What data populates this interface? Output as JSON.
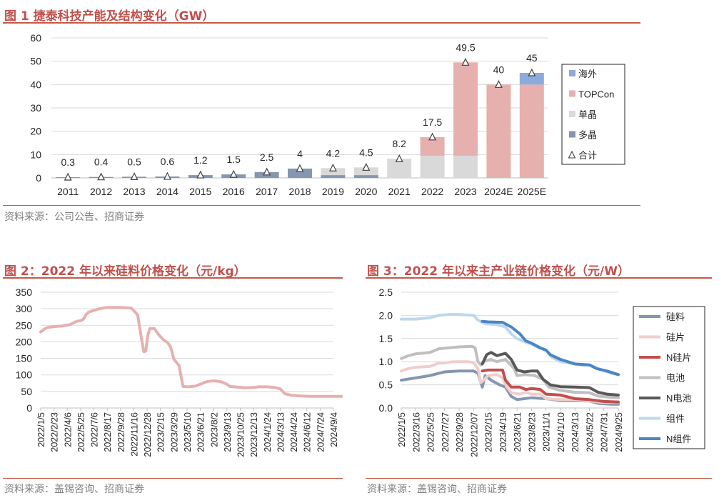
{
  "fig1": {
    "title": "图 1 捷泰科技产能及结构变化（GW）",
    "source": "资料来源：公司公告、招商证券",
    "chart_data": {
      "type": "bar",
      "stacked": true,
      "categories": [
        "2011",
        "2012",
        "2013",
        "2014",
        "2015",
        "2016",
        "2017",
        "2018",
        "2019",
        "2020",
        "2021",
        "2022",
        "2023",
        "2024E",
        "2025E"
      ],
      "series": [
        {
          "name": "多晶",
          "color": "#8496b0",
          "values": [
            0.3,
            0.4,
            0.5,
            0.6,
            1.2,
            1.5,
            2.5,
            4,
            1.2,
            1.2,
            0,
            0,
            0,
            0,
            0
          ]
        },
        {
          "name": "单晶",
          "color": "#d9d9d9",
          "values": [
            0,
            0,
            0,
            0,
            0,
            0,
            0,
            0,
            3,
            3.3,
            8.2,
            9.5,
            9.5,
            0,
            0
          ]
        },
        {
          "name": "TOPCon",
          "color": "#e6b0ae",
          "values": [
            0,
            0,
            0,
            0,
            0,
            0,
            0,
            0,
            0,
            0,
            0,
            8,
            40,
            40,
            40
          ]
        },
        {
          "name": "海外",
          "color": "#8eaadb",
          "values": [
            0,
            0,
            0,
            0,
            0,
            0,
            0,
            0,
            0,
            0,
            0,
            0,
            0,
            0,
            5
          ]
        }
      ],
      "totals_name": "合计",
      "totals": [
        0.3,
        0.4,
        0.5,
        0.6,
        1.2,
        1.5,
        2.5,
        4,
        4.2,
        4.5,
        8.2,
        17.5,
        49.5,
        40,
        45
      ],
      "total_labels": [
        "0.3",
        "0.4",
        "0.5",
        "0.6",
        "1.2",
        "1.5",
        "2.5",
        "4",
        "4.2",
        "4.5",
        "8.2",
        "17.5",
        "49.5",
        "40",
        "45"
      ],
      "ylim": [
        0,
        60
      ],
      "yticks": [
        "0",
        "10",
        "20",
        "30",
        "40",
        "50",
        "60"
      ],
      "legend_position": "right",
      "grid": true
    }
  },
  "fig2": {
    "title": "图 2：2022 年以来硅料价格变化（元/kg）",
    "source": "资料来源：盖锡咨询、招商证券",
    "chart_data": {
      "type": "line",
      "ylim": [
        0,
        350
      ],
      "yticks": [
        "0",
        "50",
        "100",
        "150",
        "200",
        "250",
        "300",
        "350"
      ],
      "xticks": [
        "2022/1/5",
        "2022/2/23",
        "2022/4/6",
        "2022/5/25",
        "2022/7/6",
        "2022/8/17",
        "2022/9/28",
        "2022/11/16",
        "2022/12/28",
        "2023/2/15",
        "2023/3/29",
        "2023/5/10",
        "2023/6/21",
        "2023/8/2",
        "2023/9/13",
        "2023/10/25",
        "2023/12/13",
        "2024/1/24",
        "2024/3/13",
        "2024/4/24",
        "2024/6/12",
        "2024/7/24",
        "2024/9/4"
      ],
      "series": [
        {
          "name": "",
          "color": "#e6b0ae",
          "points": [
            [
              0,
              230
            ],
            [
              0.25,
              238
            ],
            [
              0.5,
              243
            ],
            [
              1,
              246
            ],
            [
              1.6,
              248
            ],
            [
              2.2,
              252
            ],
            [
              2.7,
              262
            ],
            [
              3,
              264
            ],
            [
              3.2,
              268
            ],
            [
              3.4,
              282
            ],
            [
              3.6,
              290
            ],
            [
              4,
              295
            ],
            [
              4.4,
              300
            ],
            [
              5,
              304
            ],
            [
              6,
              304
            ],
            [
              6.8,
              302
            ],
            [
              7.1,
              290
            ],
            [
              7.3,
              280
            ],
            [
              7.45,
              240
            ],
            [
              7.6,
              205
            ],
            [
              7.75,
              170
            ],
            [
              7.9,
              172
            ],
            [
              8.05,
              220
            ],
            [
              8.2,
              240
            ],
            [
              8.55,
              240
            ],
            [
              8.8,
              225
            ],
            [
              9.2,
              207
            ],
            [
              9.55,
              197
            ],
            [
              9.75,
              185
            ],
            [
              9.85,
              172
            ],
            [
              10,
              148
            ],
            [
              10.4,
              128
            ],
            [
              10.55,
              95
            ],
            [
              10.7,
              65
            ],
            [
              11.1,
              64
            ],
            [
              11.6,
              66
            ],
            [
              12,
              72
            ],
            [
              12.5,
              80
            ],
            [
              13,
              82
            ],
            [
              13.5,
              80
            ],
            [
              14,
              72
            ],
            [
              14.2,
              65
            ],
            [
              14.8,
              63
            ],
            [
              15.4,
              61
            ],
            [
              16,
              62
            ],
            [
              16.4,
              64
            ],
            [
              17,
              64
            ],
            [
              17.6,
              62
            ],
            [
              18,
              58
            ],
            [
              18.35,
              43
            ],
            [
              18.9,
              38
            ],
            [
              19.6,
              36
            ],
            [
              20.3,
              35
            ],
            [
              21.3,
              35
            ],
            [
              22.3,
              35
            ],
            [
              22.6,
              35
            ]
          ]
        }
      ],
      "grid": true
    }
  },
  "fig3": {
    "title": "图 3：2022 年以来主产业链价格变化（元/W）",
    "source": "资料来源：盖锡咨询、招商证券",
    "chart_data": {
      "type": "line",
      "ylim": [
        0,
        2.5
      ],
      "yticks": [
        "0.0",
        "0.5",
        "1.0",
        "1.5",
        "2.0",
        "2.5"
      ],
      "xticks": [
        "2022/1/5",
        "2022/3/16",
        "2022/5/25",
        "2022/7/27",
        "2022/9/28",
        "2022/12/07",
        "2023/2/15",
        "2023/4/19",
        "2023/6/21",
        "2023/8/23",
        "2023/11/1",
        "2024/1/10",
        "2024/3/13",
        "2024/5/22",
        "2024/7/31",
        "2024/9/25"
      ],
      "legend_position": "right",
      "series": [
        {
          "name": "硅料",
          "color": "#8496b0",
          "points": [
            [
              0,
              0.6
            ],
            [
              1,
              0.65
            ],
            [
              2,
              0.7
            ],
            [
              2.6,
              0.75
            ],
            [
              3,
              0.78
            ],
            [
              4,
              0.8
            ],
            [
              5,
              0.8
            ],
            [
              5.3,
              0.75
            ],
            [
              5.6,
              0.45
            ],
            [
              5.8,
              0.7
            ],
            [
              6.2,
              0.6
            ],
            [
              6.8,
              0.5
            ],
            [
              7.2,
              0.45
            ],
            [
              7.6,
              0.25
            ],
            [
              8,
              0.18
            ],
            [
              8.5,
              0.2
            ],
            [
              9,
              0.22
            ],
            [
              9.5,
              0.21
            ],
            [
              10,
              0.2
            ],
            [
              11,
              0.16
            ],
            [
              12,
              0.16
            ],
            [
              13,
              0.15
            ],
            [
              13.6,
              0.1
            ],
            [
              14.5,
              0.08
            ],
            [
              15,
              0.08
            ]
          ]
        },
        {
          "name": "硅片",
          "color": "#f0cece",
          "points": [
            [
              0,
              0.8
            ],
            [
              0.5,
              0.85
            ],
            [
              1,
              0.88
            ],
            [
              2,
              0.9
            ],
            [
              2.6,
              0.97
            ],
            [
              3,
              0.97
            ],
            [
              3.6,
              1.0
            ],
            [
              4.6,
              1.0
            ],
            [
              5,
              0.98
            ],
            [
              5.3,
              0.85
            ],
            [
              5.5,
              0.55
            ],
            [
              5.7,
              0.6
            ],
            [
              6,
              0.7
            ],
            [
              6.6,
              0.72
            ],
            [
              7,
              0.65
            ],
            [
              7.3,
              0.45
            ],
            [
              7.6,
              0.33
            ],
            [
              8.2,
              0.3
            ],
            [
              8.6,
              0.34
            ],
            [
              9,
              0.3
            ],
            [
              9.6,
              0.3
            ],
            [
              10,
              0.2
            ],
            [
              11,
              0.18
            ],
            [
              12,
              0.18
            ],
            [
              13,
              0.15
            ],
            [
              14,
              0.12
            ],
            [
              15,
              0.12
            ]
          ]
        },
        {
          "name": "N硅片",
          "color": "#c0504d",
          "points": [
            [
              5.6,
              0.8
            ],
            [
              6,
              0.82
            ],
            [
              7,
              0.82
            ],
            [
              7.2,
              0.6
            ],
            [
              7.6,
              0.45
            ],
            [
              8.2,
              0.45
            ],
            [
              8.6,
              0.4
            ],
            [
              9,
              0.42
            ],
            [
              9.6,
              0.4
            ],
            [
              10,
              0.3
            ],
            [
              11,
              0.28
            ],
            [
              12,
              0.2
            ],
            [
              13,
              0.18
            ],
            [
              14,
              0.14
            ],
            [
              15,
              0.13
            ]
          ]
        },
        {
          "name": "电池",
          "color": "#bfbfbf",
          "points": [
            [
              0,
              1.07
            ],
            [
              0.5,
              1.13
            ],
            [
              1,
              1.17
            ],
            [
              2,
              1.2
            ],
            [
              2.6,
              1.28
            ],
            [
              3,
              1.29
            ],
            [
              4,
              1.32
            ],
            [
              4.9,
              1.33
            ],
            [
              5.1,
              1.3
            ],
            [
              5.3,
              1.0
            ],
            [
              5.5,
              0.93
            ],
            [
              5.8,
              1.02
            ],
            [
              6.2,
              1.05
            ],
            [
              6.6,
              1.0
            ],
            [
              7.2,
              1.05
            ],
            [
              7.8,
              0.85
            ],
            [
              8,
              0.7
            ],
            [
              8.6,
              0.72
            ],
            [
              9.2,
              0.7
            ],
            [
              9.8,
              0.62
            ],
            [
              10.2,
              0.45
            ],
            [
              11,
              0.38
            ],
            [
              12,
              0.34
            ],
            [
              13,
              0.33
            ],
            [
              13.6,
              0.26
            ],
            [
              14.5,
              0.23
            ],
            [
              15,
              0.22
            ]
          ]
        },
        {
          "name": "N电池",
          "color": "#595959",
          "points": [
            [
              5.6,
              0.95
            ],
            [
              5.9,
              1.15
            ],
            [
              6.2,
              1.2
            ],
            [
              6.6,
              1.13
            ],
            [
              7.2,
              1.18
            ],
            [
              7.6,
              1.05
            ],
            [
              8,
              0.82
            ],
            [
              8.5,
              0.78
            ],
            [
              9,
              0.8
            ],
            [
              9.4,
              0.8
            ],
            [
              9.8,
              0.62
            ],
            [
              10.3,
              0.5
            ],
            [
              11,
              0.46
            ],
            [
              12,
              0.45
            ],
            [
              13,
              0.44
            ],
            [
              13.6,
              0.34
            ],
            [
              14.2,
              0.3
            ],
            [
              15,
              0.28
            ]
          ]
        },
        {
          "name": "组件",
          "color": "#bdd7ee",
          "points": [
            [
              0,
              1.92
            ],
            [
              1,
              1.92
            ],
            [
              2,
              1.95
            ],
            [
              2.6,
              2.0
            ],
            [
              3.3,
              2.02
            ],
            [
              4,
              2.02
            ],
            [
              5,
              2.0
            ],
            [
              5.3,
              1.9
            ],
            [
              5.8,
              1.82
            ],
            [
              6.6,
              1.8
            ],
            [
              7.2,
              1.75
            ],
            [
              7.6,
              1.6
            ],
            [
              8,
              1.5
            ],
            [
              8.6,
              1.42
            ],
            [
              9,
              1.38
            ],
            [
              9.5,
              1.3
            ],
            [
              10,
              1.25
            ],
            [
              10.4,
              1.1
            ],
            [
              11,
              1.0
            ],
            [
              12,
              0.95
            ],
            [
              12.6,
              0.92
            ],
            [
              13,
              0.93
            ],
            [
              13.6,
              0.85
            ],
            [
              14.5,
              0.75
            ],
            [
              15,
              0.72
            ]
          ]
        },
        {
          "name": "N组件",
          "color": "#4a86c5",
          "points": [
            [
              5.6,
              1.87
            ],
            [
              6,
              1.86
            ],
            [
              7,
              1.85
            ],
            [
              7.6,
              1.75
            ],
            [
              8.2,
              1.6
            ],
            [
              8.6,
              1.45
            ],
            [
              9,
              1.4
            ],
            [
              9.6,
              1.3
            ],
            [
              10,
              1.25
            ],
            [
              10.3,
              1.15
            ],
            [
              11,
              1.05
            ],
            [
              12,
              0.95
            ],
            [
              13,
              0.93
            ],
            [
              13.5,
              0.85
            ],
            [
              14.2,
              0.8
            ],
            [
              15,
              0.72
            ]
          ]
        }
      ],
      "grid": true
    }
  }
}
